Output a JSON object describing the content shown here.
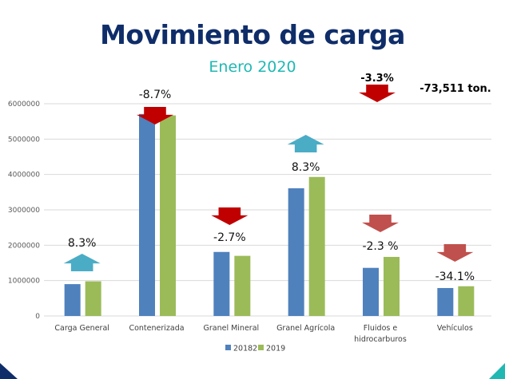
{
  "header": {
    "title": "Movimiento de carga",
    "subtitle": "Enero 2020"
  },
  "chart_data": {
    "type": "bar",
    "title": "Movimiento de carga",
    "subtitle": "Enero 2020",
    "categories": [
      "Carga General",
      "Contenerizada",
      "Granel Mineral",
      "Granel Agrícola",
      "Fluidos e hidrocarburos",
      "Vehículos"
    ],
    "category_lines": [
      [
        "Carga General"
      ],
      [
        "Contenerizada"
      ],
      [
        "Granel Mineral"
      ],
      [
        "Granel Agrícola"
      ],
      [
        "Fluidos e",
        "hidrocarburos"
      ],
      [
        "Vehículos"
      ]
    ],
    "series": [
      {
        "name": "20182",
        "color": "#4f81bd",
        "values": [
          900000,
          5710000,
          1810000,
          3610000,
          1360000,
          790000
        ]
      },
      {
        "name": "2019",
        "color": "#9bbb59",
        "values": [
          980000,
          5670000,
          1700000,
          3930000,
          1670000,
          840000
        ]
      }
    ],
    "ylim": [
      0,
      6000000
    ],
    "yticks": [
      "0",
      "1000000",
      "2000000",
      "3000000",
      "4000000",
      "5000000",
      "6000000"
    ],
    "grid": true,
    "legend_position": "bottom",
    "annotations": [
      {
        "category": "Carga General",
        "text": "8.3%",
        "direction": "up",
        "color": "#4bacc6"
      },
      {
        "category": "Contenerizada",
        "text": "-8.7%",
        "direction": "down",
        "color": "#c00000"
      },
      {
        "category": "Granel Mineral",
        "text": "-2.7%",
        "direction": "down",
        "color": "#c00000"
      },
      {
        "category": "Granel Agrícola",
        "text": "8.3%",
        "direction": "up",
        "color": "#4bacc6"
      },
      {
        "category": "Fluidos e hidrocarburos",
        "text": "-2.3 %",
        "direction": "down",
        "color": "#c0504d"
      },
      {
        "category": "Vehículos",
        "text": "-34.1%",
        "direction": "down",
        "color": "#c0504d"
      }
    ],
    "total": {
      "text": "-3.3%",
      "direction": "down",
      "color": "#c00000",
      "tonnage": "-73,511 ton."
    }
  }
}
